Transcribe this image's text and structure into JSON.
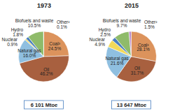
{
  "chart_data": [
    {
      "type": "pie",
      "title": "1973",
      "categories": [
        "Coal³",
        "Oil",
        "Natural gas",
        "Nuclear",
        "Hydro",
        "Biofuels and waste",
        "Other²"
      ],
      "values": [
        24.5,
        46.2,
        16.0,
        0.9,
        1.8,
        10.5,
        0.1
      ],
      "value_labels": [
        "24.5%",
        "46.2%",
        "16.0%",
        "0.9%",
        "1.8%",
        "10.5%",
        "0.1%"
      ],
      "colors": [
        "#dc935c",
        "#a8603f",
        "#8fbfe0",
        "#f2d95a",
        "#4a7fc0",
        "#8fbb6a",
        "#b98ac6"
      ],
      "data_labels": true,
      "annotations": [
        "6 101 Mtoe"
      ]
    },
    {
      "type": "pie",
      "title": "2015",
      "categories": [
        "Coal³",
        "Oil",
        "Natural gas",
        "Nuclear",
        "Hydro",
        "Biofuels and waste",
        "Other²"
      ],
      "values": [
        28.1,
        31.7,
        21.6,
        4.9,
        2.5,
        9.7,
        1.5
      ],
      "value_labels": [
        "28.1%",
        "31.7%",
        "21.6%",
        "4.9%",
        "2.5%",
        "9.7%",
        "1.5%"
      ],
      "colors": [
        "#dc935c",
        "#a8603f",
        "#8fbfe0",
        "#f2d95a",
        "#4a7fc0",
        "#8fbb6a",
        "#b98ac6"
      ],
      "data_labels": true,
      "annotations": [
        "13 647 Mtoe"
      ]
    }
  ]
}
